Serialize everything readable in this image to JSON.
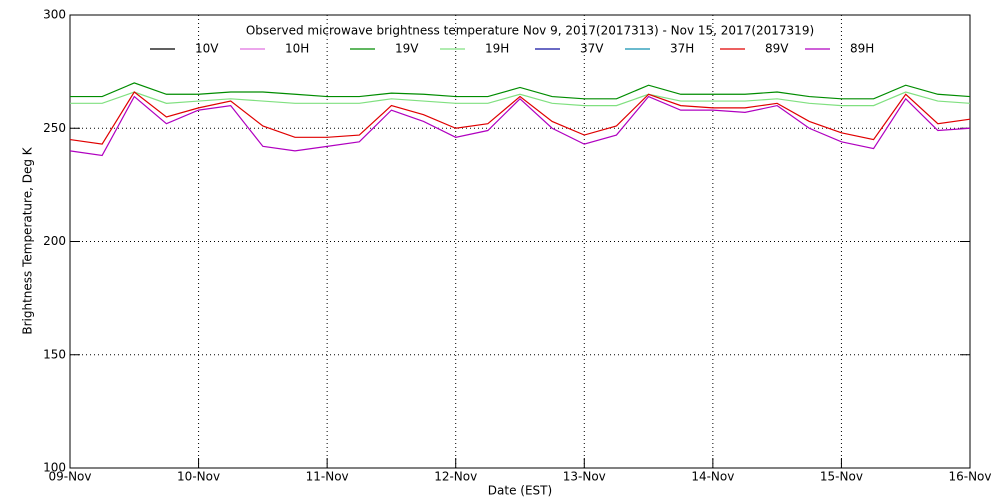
{
  "chart_data": {
    "type": "line",
    "title": "Observed microwave brightness temperature Nov  9, 2017(2017313) - Nov 15, 2017(2017319)",
    "x_label": "Date (EST)",
    "y_label": "Brightness Temperature, Deg K",
    "x": [
      0,
      0.25,
      0.5,
      0.75,
      1,
      1.25,
      1.5,
      1.75,
      2,
      2.25,
      2.5,
      2.75,
      3,
      3.25,
      3.5,
      3.75,
      4,
      4.25,
      4.5,
      4.75,
      5,
      5.25,
      5.5,
      5.75,
      6,
      6.25,
      6.5,
      6.75,
      7
    ],
    "xlim": [
      0,
      7
    ],
    "xticks": [
      {
        "value": 0,
        "label": "09-Nov"
      },
      {
        "value": 1,
        "label": "10-Nov"
      },
      {
        "value": 2,
        "label": "11-Nov"
      },
      {
        "value": 3,
        "label": "12-Nov"
      },
      {
        "value": 4,
        "label": "13-Nov"
      },
      {
        "value": 5,
        "label": "14-Nov"
      },
      {
        "value": 6,
        "label": "15-Nov"
      },
      {
        "value": 7,
        "label": "16-Nov"
      }
    ],
    "ylim": [
      100,
      300
    ],
    "yticks": [
      100,
      150,
      200,
      250,
      300
    ],
    "grid": true,
    "series": [
      {
        "name": "10V",
        "color": "#000000",
        "values": [
          null,
          null,
          null,
          null,
          null,
          null,
          null,
          null,
          null,
          null,
          null,
          null,
          null,
          null,
          null,
          null,
          null,
          null,
          null,
          null,
          null,
          null,
          null,
          null,
          null,
          null,
          null,
          null,
          null
        ]
      },
      {
        "name": "10H",
        "color": "#e070e0",
        "values": [
          null,
          null,
          null,
          null,
          null,
          null,
          null,
          null,
          null,
          null,
          null,
          null,
          null,
          null,
          null,
          null,
          null,
          null,
          null,
          null,
          null,
          null,
          null,
          null,
          null,
          null,
          null,
          null,
          null
        ]
      },
      {
        "name": "19V",
        "color": "#008c00",
        "values": [
          264,
          264,
          270,
          265,
          265,
          266,
          266,
          265,
          264,
          264,
          265.5,
          265,
          264,
          264,
          268,
          264,
          263,
          263,
          269,
          265,
          265,
          265,
          266,
          264,
          263,
          263,
          269,
          265,
          264
        ]
      },
      {
        "name": "19H",
        "color": "#80e080",
        "values": [
          261,
          261,
          266,
          261,
          262,
          263,
          262,
          261,
          261,
          261,
          263,
          262,
          261,
          261,
          265,
          261,
          260,
          260,
          265,
          262,
          262,
          262,
          263,
          261,
          260,
          260,
          266,
          262,
          261
        ]
      },
      {
        "name": "37V",
        "color": "#1010a0",
        "values": [
          null,
          null,
          null,
          null,
          null,
          null,
          null,
          null,
          null,
          null,
          null,
          null,
          null,
          null,
          null,
          null,
          null,
          null,
          null,
          null,
          null,
          null,
          null,
          null,
          null,
          null,
          null,
          null,
          null
        ]
      },
      {
        "name": "37H",
        "color": "#1090b0",
        "values": [
          null,
          null,
          null,
          null,
          null,
          null,
          null,
          null,
          null,
          null,
          null,
          null,
          null,
          null,
          null,
          null,
          null,
          null,
          null,
          null,
          null,
          null,
          null,
          null,
          null,
          null,
          null,
          null,
          null
        ]
      },
      {
        "name": "89V",
        "color": "#e00000",
        "values": [
          245,
          243,
          266,
          255,
          259,
          262,
          251,
          246,
          246,
          247,
          260,
          256,
          250,
          252,
          264,
          253,
          247,
          251,
          265,
          260,
          259,
          259,
          261,
          253,
          248,
          245,
          265,
          252,
          254
        ]
      },
      {
        "name": "89H",
        "color": "#b000c0",
        "values": [
          240,
          238,
          264,
          252,
          258,
          260,
          242,
          240,
          242,
          244,
          258,
          253,
          246,
          249,
          263,
          250,
          243,
          247,
          264,
          258,
          258,
          257,
          260,
          250,
          244,
          241,
          263,
          249,
          250
        ]
      }
    ]
  }
}
